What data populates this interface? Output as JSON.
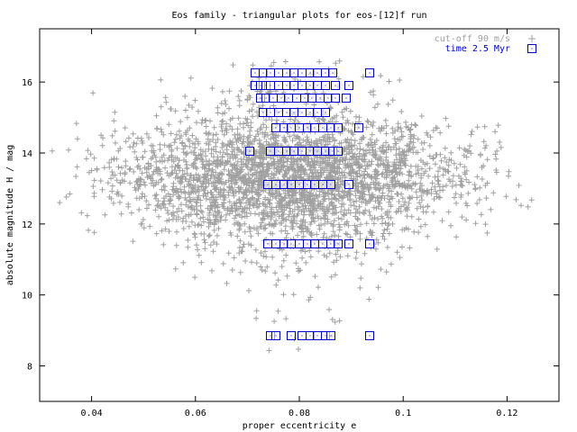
{
  "chart_data": {
    "type": "scatter",
    "title": "Eos family - triangular plots for eos-[12]f run",
    "xlabel": "proper eccentricity e",
    "ylabel": "absolute magnitude H / mag",
    "xlim": [
      0.03,
      0.13
    ],
    "ylim": [
      7.0,
      17.5
    ],
    "x_ticks": [
      "0.04",
      "0.06",
      "0.08",
      "0.1",
      "0.12"
    ],
    "y_ticks": [
      "8",
      "10",
      "12",
      "14",
      "16"
    ],
    "legend_placement": "top-right",
    "grid": false,
    "series": [
      {
        "name": "cut-off 90 m/s",
        "marker": "plus",
        "color": "#a0a0a0",
        "distribution": {
          "center_x": 0.078,
          "spread_x": 0.016,
          "center_y": 13.3,
          "spread_y": 0.75,
          "count": 3200
        }
      },
      {
        "name": "time 2.5 Myr",
        "marker": "square",
        "color": "#0000cc",
        "rows": [
          {
            "y": 16.25,
            "x": [
              0.0715,
              0.073,
              0.0745,
              0.076,
              0.0775,
              0.079,
              0.0805,
              0.082,
              0.0835,
              0.085,
              0.0865,
              0.0935
            ]
          },
          {
            "y": 15.9,
            "x": [
              0.0715,
              0.0725,
              0.0735,
              0.0745,
              0.076,
              0.0775,
              0.079,
              0.0805,
              0.082,
              0.0835,
              0.085,
              0.087,
              0.0895
            ]
          },
          {
            "y": 15.55,
            "x": [
              0.0725,
              0.0735,
              0.075,
              0.0765,
              0.078,
              0.0795,
              0.081,
              0.0825,
              0.084,
              0.0855,
              0.087,
              0.089
            ]
          },
          {
            "y": 15.15,
            "x": [
              0.073,
              0.0745,
              0.076,
              0.0775,
              0.079,
              0.0805,
              0.082,
              0.0835,
              0.085
            ]
          },
          {
            "y": 14.7,
            "x": [
              0.0755,
              0.077,
              0.0785,
              0.08,
              0.0815,
              0.083,
              0.0845,
              0.086,
              0.0875,
              0.0915
            ]
          },
          {
            "y": 14.05,
            "x": [
              0.0705,
              0.0745,
              0.076,
              0.0775,
              0.079,
              0.0805,
              0.082,
              0.0835,
              0.085,
              0.0865,
              0.0875
            ]
          },
          {
            "y": 13.1,
            "x": [
              0.074,
              0.0755,
              0.077,
              0.0785,
              0.08,
              0.0815,
              0.083,
              0.0845,
              0.086,
              0.0895
            ]
          },
          {
            "y": 11.45,
            "x": [
              0.074,
              0.0755,
              0.077,
              0.0785,
              0.08,
              0.0815,
              0.083,
              0.0845,
              0.086,
              0.0875,
              0.0895,
              0.0935
            ]
          },
          {
            "y": 8.85,
            "x": [
              0.0745,
              0.0755,
              0.0785,
              0.0805,
              0.082,
              0.0835,
              0.085,
              0.086,
              0.0935
            ]
          }
        ]
      }
    ]
  }
}
